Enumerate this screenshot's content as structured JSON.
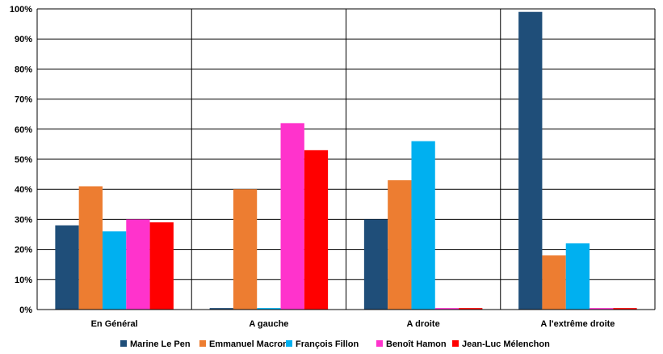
{
  "chart_data": {
    "type": "bar",
    "categories": [
      "En Général",
      "A gauche",
      "A droite",
      "A l'extrême droite"
    ],
    "series": [
      {
        "name": "Marine Le Pen",
        "color": "#1F4E79",
        "values": [
          28,
          0.5,
          30,
          99
        ]
      },
      {
        "name": "Emmanuel Macron",
        "color": "#ED7D31",
        "values": [
          41,
          40,
          43,
          18
        ]
      },
      {
        "name": "François Fillon",
        "color": "#00B0F0",
        "values": [
          26,
          0.5,
          56,
          22
        ]
      },
      {
        "name": "Benoît Hamon",
        "color": "#FF33CC",
        "values": [
          30,
          62,
          0.5,
          0.5
        ]
      },
      {
        "name": "Jean-Luc Mélenchon",
        "color": "#FF0000",
        "values": [
          29,
          53,
          0.5,
          0.5
        ]
      }
    ],
    "ylim": [
      0,
      100
    ],
    "yticks": [
      "0%",
      "10%",
      "20%",
      "30%",
      "40%",
      "50%",
      "60%",
      "70%",
      "80%",
      "90%",
      "100%"
    ],
    "grid": true,
    "legend": "bottom"
  }
}
